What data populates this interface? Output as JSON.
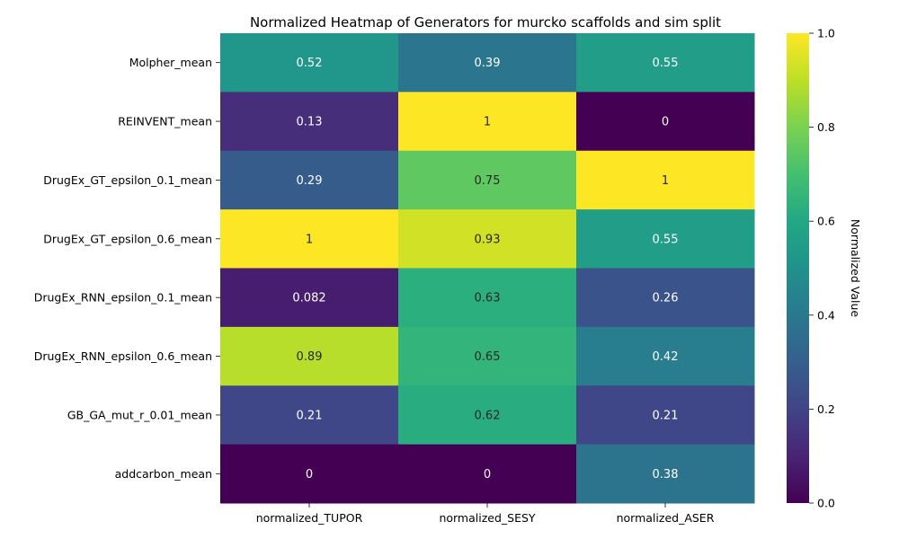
{
  "chart_data": {
    "type": "heatmap",
    "title": "Normalized Heatmap of Generators for murcko scaffolds and sim split",
    "x_categories": [
      "normalized_TUPOR",
      "normalized_SESY",
      "normalized_ASER"
    ],
    "y_categories": [
      "Molpher_mean",
      "REINVENT_mean",
      "DrugEx_GT_epsilon_0.1_mean",
      "DrugEx_GT_epsilon_0.6_mean",
      "DrugEx_RNN_epsilon_0.1_mean",
      "DrugEx_RNN_epsilon_0.6_mean",
      "GB_GA_mut_r_0.01_mean",
      "addcarbon_mean"
    ],
    "values": [
      [
        0.52,
        0.39,
        0.55
      ],
      [
        0.13,
        1,
        0
      ],
      [
        0.29,
        0.75,
        1
      ],
      [
        1,
        0.93,
        0.55
      ],
      [
        0.082,
        0.63,
        0.26
      ],
      [
        0.89,
        0.65,
        0.42
      ],
      [
        0.21,
        0.62,
        0.21
      ],
      [
        0,
        0,
        0.38
      ]
    ],
    "annotations": [
      [
        "0.52",
        "0.39",
        "0.55"
      ],
      [
        "0.13",
        "1",
        "0"
      ],
      [
        "0.29",
        "0.75",
        "1"
      ],
      [
        "1",
        "0.93",
        "0.55"
      ],
      [
        "0.082",
        "0.63",
        "0.26"
      ],
      [
        "0.89",
        "0.65",
        "0.42"
      ],
      [
        "0.21",
        "0.62",
        "0.21"
      ],
      [
        "0",
        "0",
        "0.38"
      ]
    ],
    "colormap": "viridis",
    "colorbar": {
      "label": "Normalized Value",
      "range": [
        0,
        1
      ],
      "ticks": [
        "0.0",
        "0.2",
        "0.4",
        "0.6",
        "0.8",
        "1.0"
      ]
    },
    "grid": false
  }
}
